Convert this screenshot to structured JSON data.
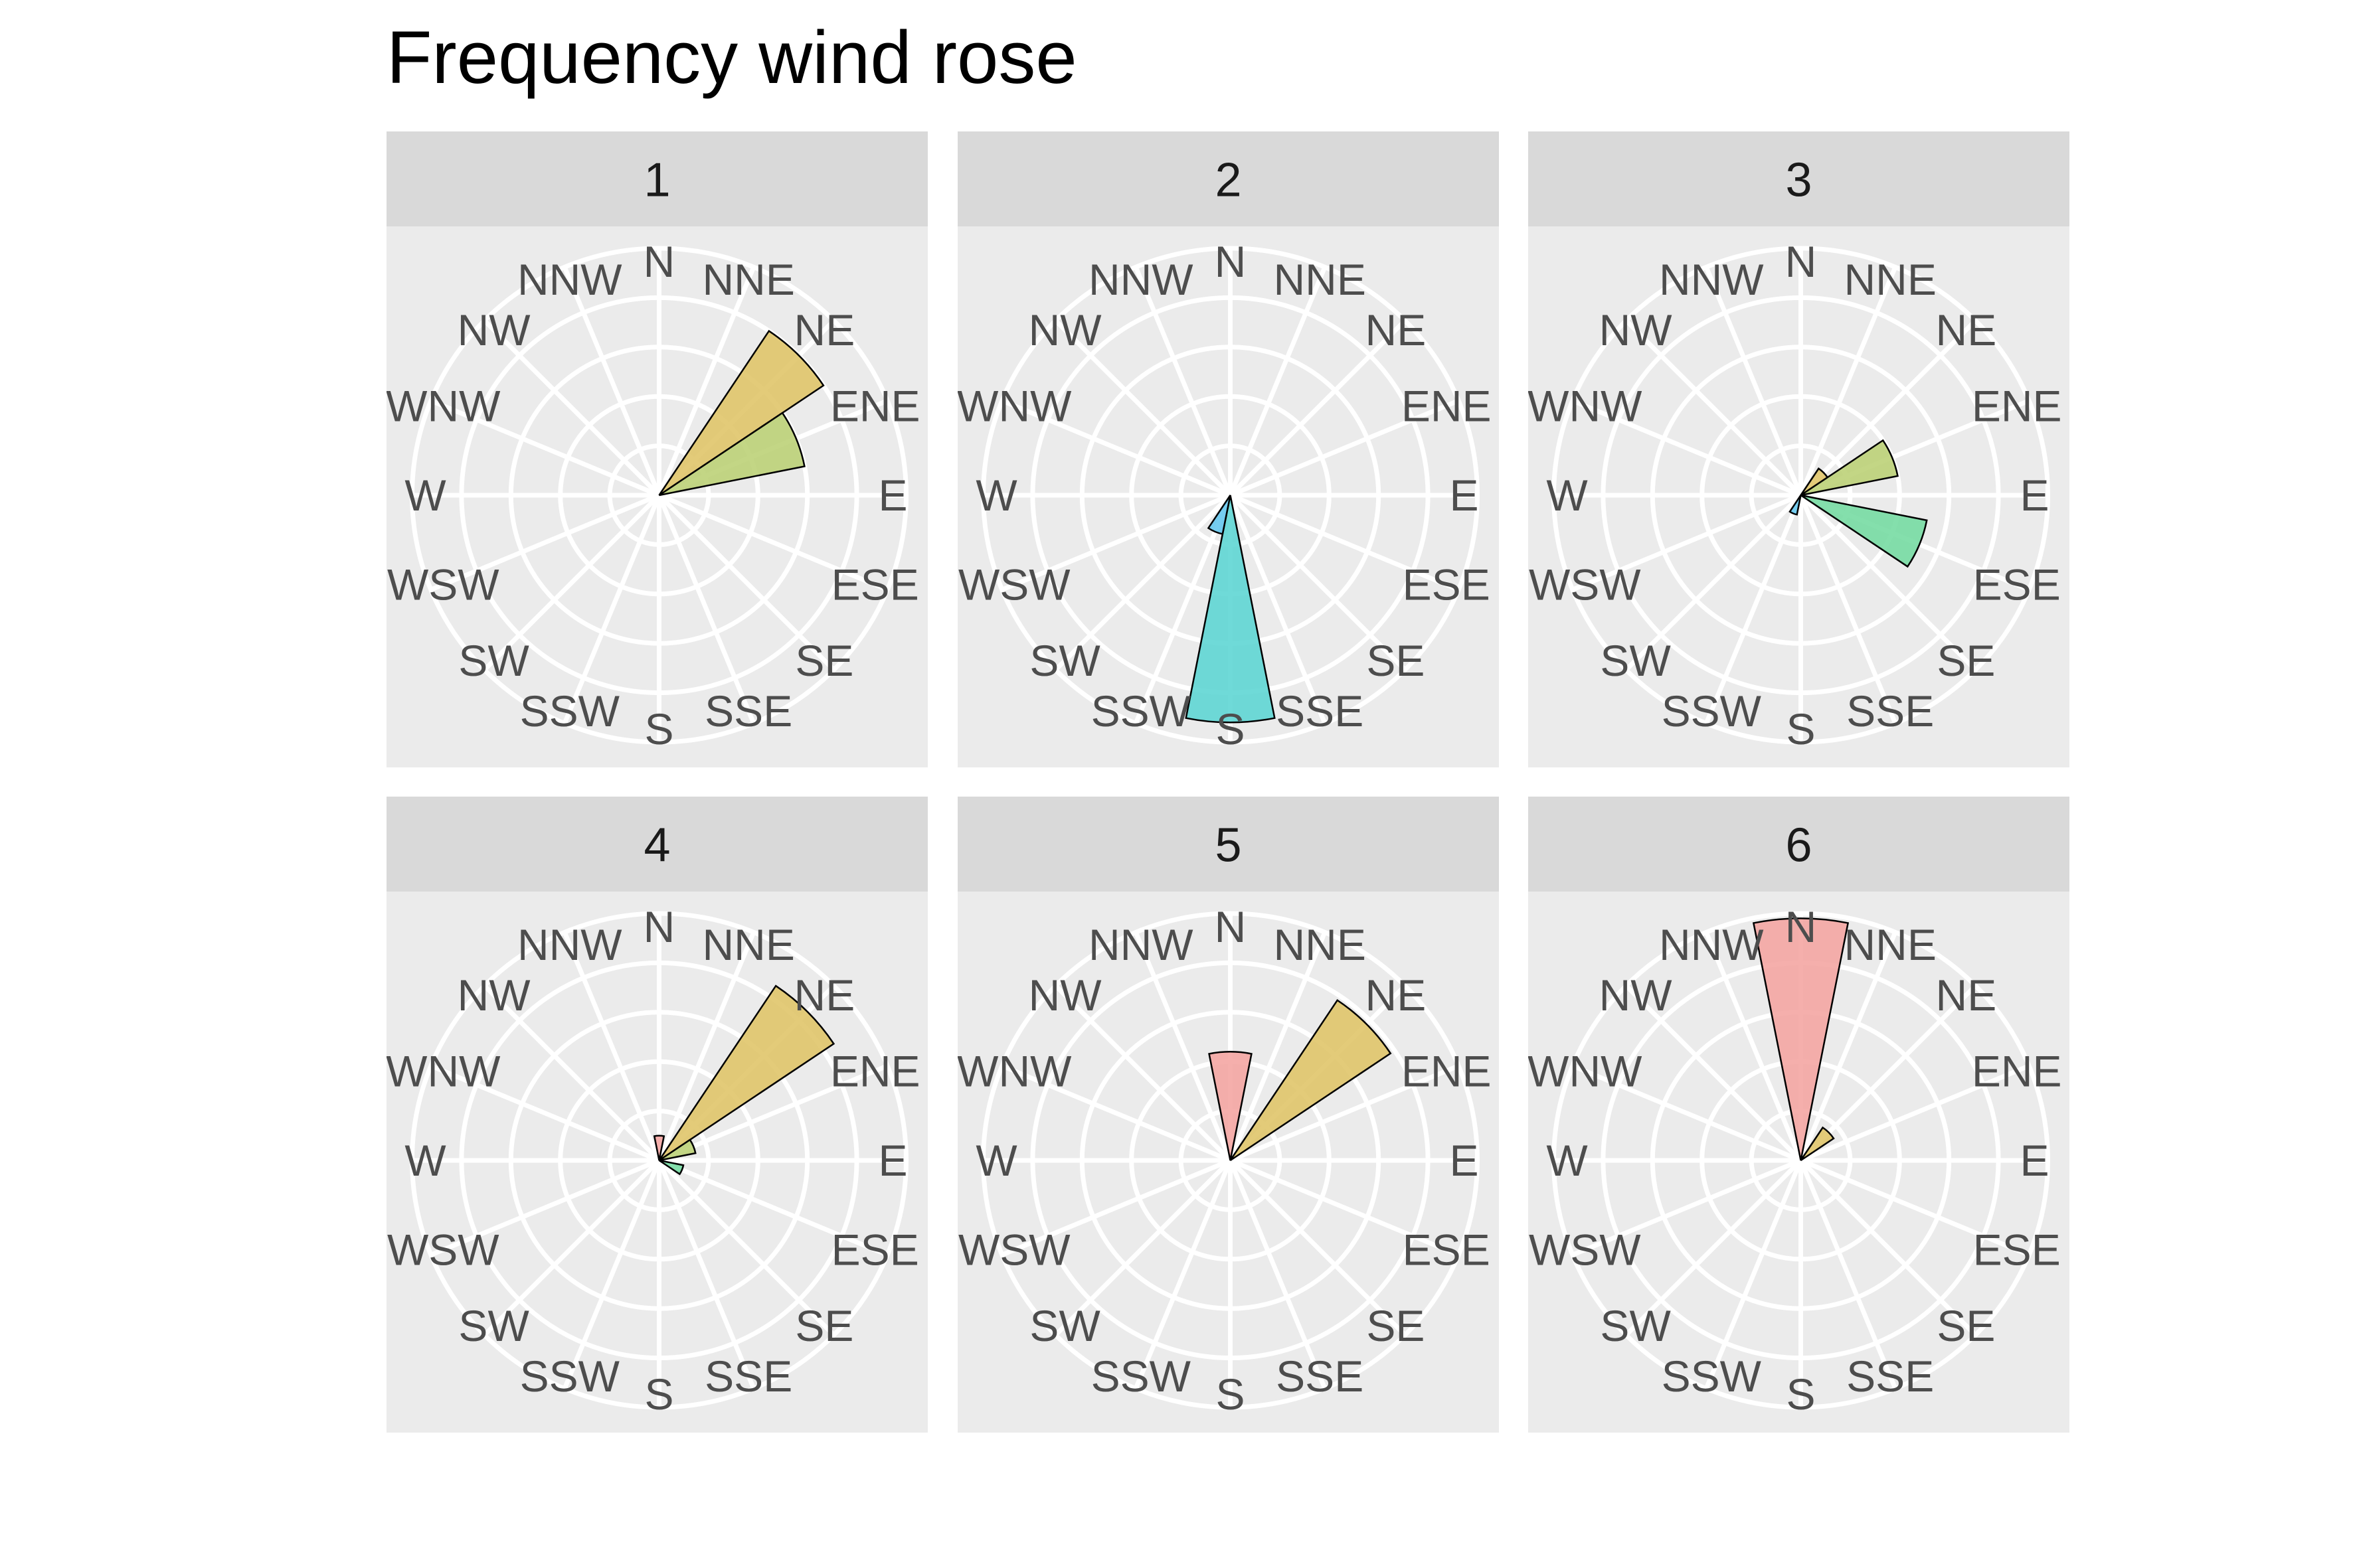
{
  "chart_data": {
    "type": "rose",
    "title": "Frequency wind rose",
    "directions": [
      "N",
      "NNE",
      "NE",
      "ENE",
      "E",
      "ESE",
      "SE",
      "SSE",
      "S",
      "SSW",
      "SW",
      "WSW",
      "W",
      "WNW",
      "NW",
      "NNW"
    ],
    "grid": true,
    "rings": 5,
    "facets": [
      {
        "label": "1",
        "sectors": [
          {
            "direction": "NE",
            "value": 0.8,
            "color": "#e0c56a"
          },
          {
            "direction": "ENE",
            "value": 0.6,
            "color": "#bcd278"
          }
        ]
      },
      {
        "label": "2",
        "sectors": [
          {
            "direction": "S",
            "value": 0.92,
            "color": "#5fd6d4"
          },
          {
            "direction": "SSW",
            "value": 0.16,
            "color": "#66c8ee"
          }
        ]
      },
      {
        "label": "3",
        "sectors": [
          {
            "direction": "NE",
            "value": 0.13,
            "color": "#e0c56a"
          },
          {
            "direction": "ENE",
            "value": 0.4,
            "color": "#bcd278"
          },
          {
            "direction": "ESE",
            "value": 0.52,
            "color": "#77dba3"
          },
          {
            "direction": "SSW",
            "value": 0.08,
            "color": "#66c8ee"
          }
        ]
      },
      {
        "label": "4",
        "sectors": [
          {
            "direction": "NE",
            "value": 0.85,
            "color": "#e0c56a"
          },
          {
            "direction": "ENE",
            "value": 0.15,
            "color": "#bcd278"
          },
          {
            "direction": "ESE",
            "value": 0.1,
            "color": "#77dba3"
          },
          {
            "direction": "N",
            "value": 0.1,
            "color": "#f4a6a3"
          }
        ]
      },
      {
        "label": "5",
        "sectors": [
          {
            "direction": "NE",
            "value": 0.78,
            "color": "#e0c56a"
          },
          {
            "direction": "N",
            "value": 0.44,
            "color": "#f4a6a3"
          }
        ]
      },
      {
        "label": "6",
        "sectors": [
          {
            "direction": "N",
            "value": 0.98,
            "color": "#f4a6a3"
          },
          {
            "direction": "NE",
            "value": 0.16,
            "color": "#e0c56a"
          }
        ]
      }
    ]
  }
}
